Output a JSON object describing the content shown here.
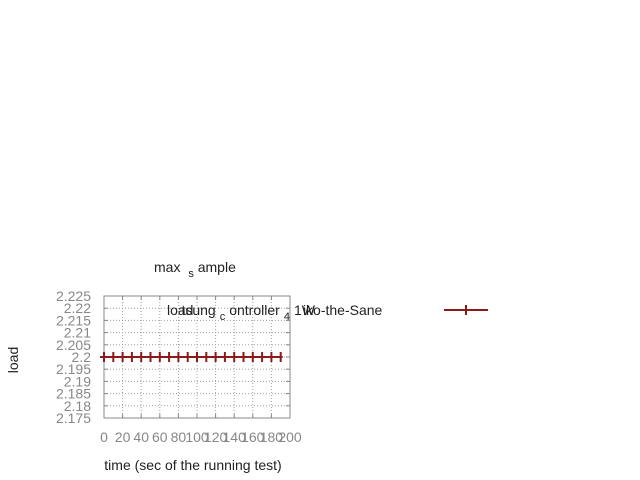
{
  "chart_data": {
    "type": "line",
    "title": {
      "main": "max",
      "sub": "s",
      "rest": "ample"
    },
    "xlabel": "time (sec of the running test)",
    "ylabel": "load",
    "xlim": [
      0,
      200
    ],
    "ylim": [
      2.175,
      2.225
    ],
    "x_ticks": [
      "0",
      "20",
      "40",
      "60",
      "80",
      "100",
      "120",
      "140",
      "160",
      "180",
      "200"
    ],
    "y_ticks": [
      "2.175",
      "2.18",
      "2.185",
      "2.19",
      "2.195",
      "2.2",
      "2.205",
      "2.21",
      "2.215",
      "2.22",
      "2.225"
    ],
    "grid": true,
    "legend_position": "top-right",
    "colors": {
      "series": "#8b1a1a"
    },
    "series": [
      {
        "legend_parts": [
          {
            "text": "load",
            "offset": 0
          },
          {
            "text": "tsung",
            "offset": 0
          },
          {
            "text": "c",
            "offset": 1
          },
          {
            "text": "ontroller",
            "offset": 0
          },
          {
            "text": "4",
            "offset": 1
          },
          {
            "text": "1W",
            "offset": 0
          },
          {
            "text": "iko-the-Sane",
            "offset": 0
          }
        ],
        "x": [
          0,
          10,
          20,
          30,
          40,
          50,
          60,
          70,
          80,
          90,
          100,
          110,
          120,
          130,
          140,
          150,
          160,
          170,
          180,
          190
        ],
        "y": [
          2.2,
          2.2,
          2.2,
          2.2,
          2.2,
          2.2,
          2.2,
          2.2,
          2.2,
          2.2,
          2.2,
          2.2,
          2.2,
          2.2,
          2.2,
          2.2,
          2.2,
          2.2,
          2.2,
          2.2
        ]
      }
    ]
  }
}
